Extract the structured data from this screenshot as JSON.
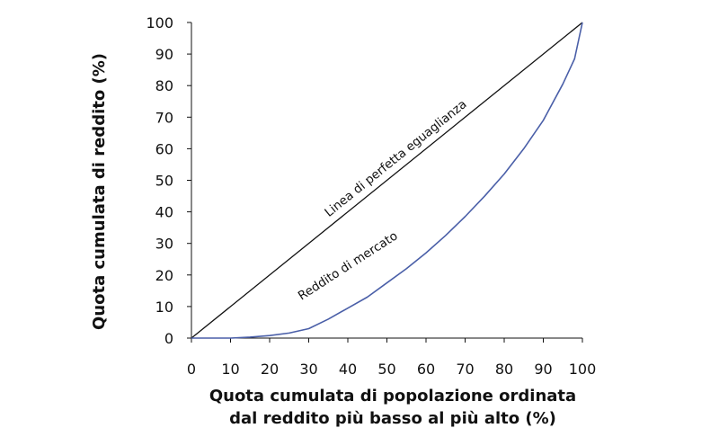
{
  "chart_data": {
    "type": "line",
    "title": "",
    "xlabel": [
      "Quota cumulata di popolazione ordinata",
      "dal reddito più basso al più alto (%)"
    ],
    "ylabel": "Quota cumulata di reddito (%)",
    "xlim": [
      0,
      100
    ],
    "ylim": [
      0,
      100
    ],
    "xticks": [
      "0",
      "10",
      "20",
      "30",
      "40",
      "50",
      "60",
      "70",
      "80",
      "90",
      "100"
    ],
    "yticks": [
      "0",
      "10",
      "20",
      "30",
      "40",
      "50",
      "60",
      "70",
      "80",
      "90",
      "100"
    ],
    "grid": false,
    "series": [
      {
        "name": "Linea di perfetta eguaglianza",
        "color": "#111111",
        "x": [
          0,
          100
        ],
        "y": [
          0,
          100
        ]
      },
      {
        "name": "Reddito di mercato",
        "color": "#4a5fa8",
        "x": [
          0,
          10,
          15,
          20,
          25,
          30,
          35,
          40,
          45,
          50,
          55,
          60,
          65,
          70,
          75,
          80,
          85,
          90,
          95,
          98,
          100
        ],
        "y": [
          0,
          0,
          0.3,
          0.8,
          1.6,
          3,
          6,
          9.5,
          13,
          17.5,
          22,
          27,
          32.5,
          38.5,
          45,
          52,
          60,
          69,
          80.5,
          88.5,
          100
        ]
      }
    ]
  }
}
